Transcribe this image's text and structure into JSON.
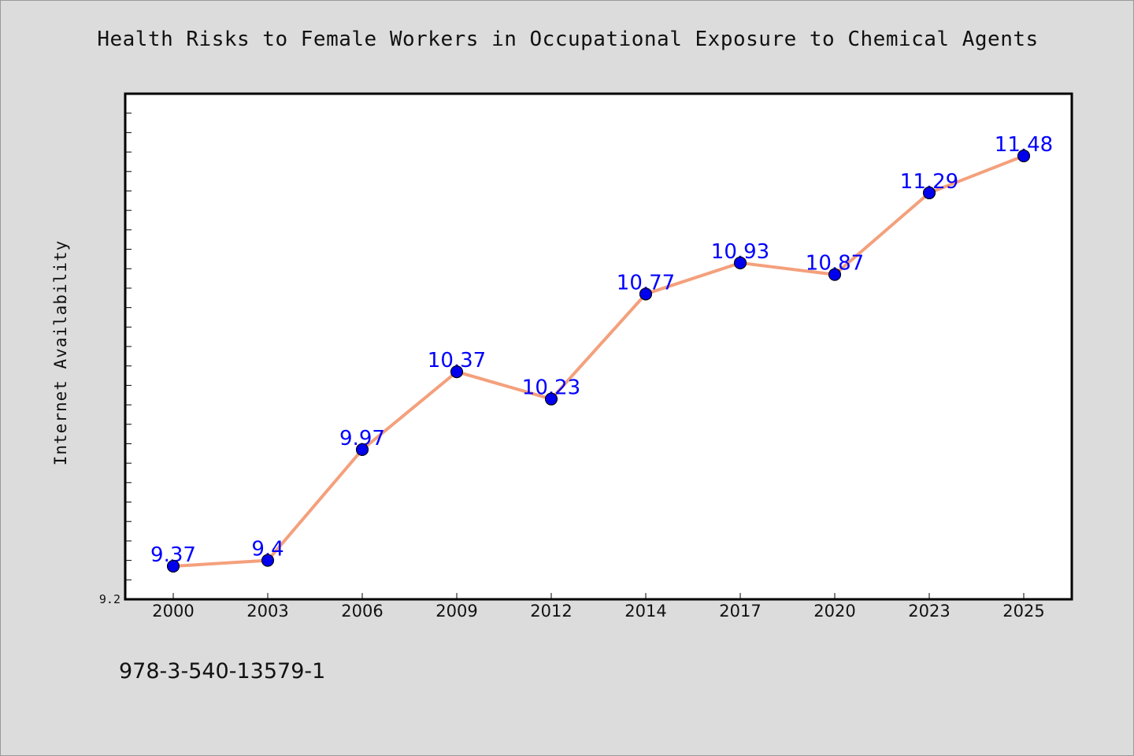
{
  "chart_data": {
    "type": "line",
    "title": "Health Risks to Female Workers in Occupational Exposure to Chemical Agents",
    "xlabel": "",
    "ylabel": "Internet Availability",
    "categories": [
      "2000",
      "2003",
      "2006",
      "2009",
      "2012",
      "2014",
      "2017",
      "2020",
      "2023",
      "2025"
    ],
    "values": [
      9.37,
      9.4,
      9.97,
      10.37,
      10.23,
      10.77,
      10.93,
      10.87,
      11.29,
      11.48
    ],
    "data_labels": [
      "9.37",
      "9.4",
      "9.97",
      "10.37",
      "10.23",
      "10.77",
      "10.93",
      "10.87",
      "11.29",
      "11.48"
    ],
    "ylim": [
      9.2,
      11.8
    ],
    "y_tick_labels": [
      "9.2"
    ],
    "grid": false,
    "legend": "none",
    "colors": {
      "line": "#f4a07c",
      "marker": "#0000ee",
      "label": "#0000ff",
      "background": "#dcdcdc",
      "plot_background": "#ffffff"
    }
  },
  "footer": {
    "code": "978-3-540-13579-1"
  }
}
